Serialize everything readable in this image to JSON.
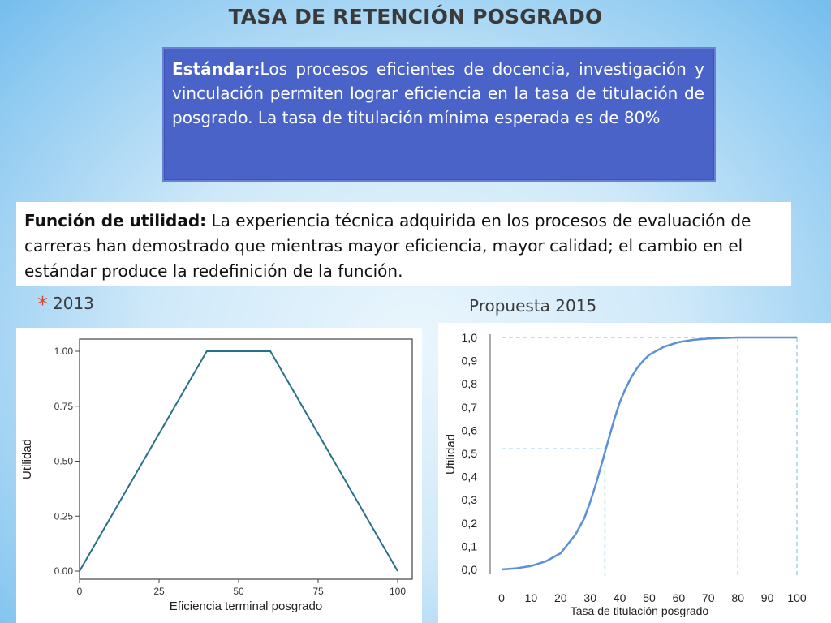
{
  "slide": {
    "title": "TASA DE RETENCIÓN POSGRADO",
    "standard_lead": "Estándar:",
    "standard_text": "Los procesos eficientes de docencia, investigación y vinculación permiten lograr eficiencia en la tasa de titulación de posgrado. La tasa de titulación mínima esperada es de 80%",
    "function_lead": "Función de utilidad:",
    "function_text": " La experiencia técnica adquirida en los procesos de evaluación de carreras han demostrado que mientras mayor eficiencia, mayor calidad; el cambio en el estándar produce la redefinición de la función.",
    "bullet_symbol": "*",
    "label_2013": "2013",
    "label_2015": "Propuesta 2015"
  },
  "chart_data": [
    {
      "type": "line",
      "xlabel": "Eficiencia terminal posgrado",
      "ylabel": "Utilidad",
      "xlim": [
        0,
        100
      ],
      "ylim": [
        0,
        1.0
      ],
      "xticks": [
        "0",
        "25",
        "50",
        "75",
        "100"
      ],
      "yticks": [
        "0.00",
        "0.25",
        "0.50",
        "0.75",
        "1.00"
      ],
      "x": [
        0,
        40,
        60,
        100
      ],
      "y": [
        0,
        1,
        1,
        0
      ],
      "line_color": "#2a6f8a",
      "grid": false
    },
    {
      "type": "line",
      "xlabel": "Tasa de titulación posgrado",
      "ylabel": "Utilidad",
      "xlim": [
        0,
        100
      ],
      "ylim": [
        0,
        1.0
      ],
      "xticks": [
        "0",
        "10",
        "20",
        "30",
        "40",
        "50",
        "60",
        "70",
        "80",
        "90",
        "100"
      ],
      "yticks": [
        "0,0",
        "0,1",
        "0,2",
        "0,3",
        "0,4",
        "0,5",
        "0,6",
        "0,7",
        "0,8",
        "0,9",
        "1,0"
      ],
      "x": [
        0,
        5,
        10,
        15,
        20,
        25,
        28,
        30,
        32,
        34,
        36,
        38,
        40,
        42,
        44,
        46,
        48,
        50,
        55,
        60,
        65,
        70,
        75,
        80,
        90,
        100
      ],
      "y": [
        0.0,
        0.005,
        0.015,
        0.035,
        0.07,
        0.15,
        0.22,
        0.29,
        0.37,
        0.46,
        0.55,
        0.64,
        0.72,
        0.78,
        0.83,
        0.87,
        0.9,
        0.925,
        0.96,
        0.98,
        0.99,
        0.995,
        0.998,
        1.0,
        1.0,
        1.0
      ],
      "reference_lines": [
        {
          "x": 35,
          "y": 0.52
        },
        {
          "x": 80,
          "y": 1.0
        }
      ],
      "line_color": "#5b8fd8",
      "guide_color": "#9fd3e8",
      "grid": false
    }
  ]
}
